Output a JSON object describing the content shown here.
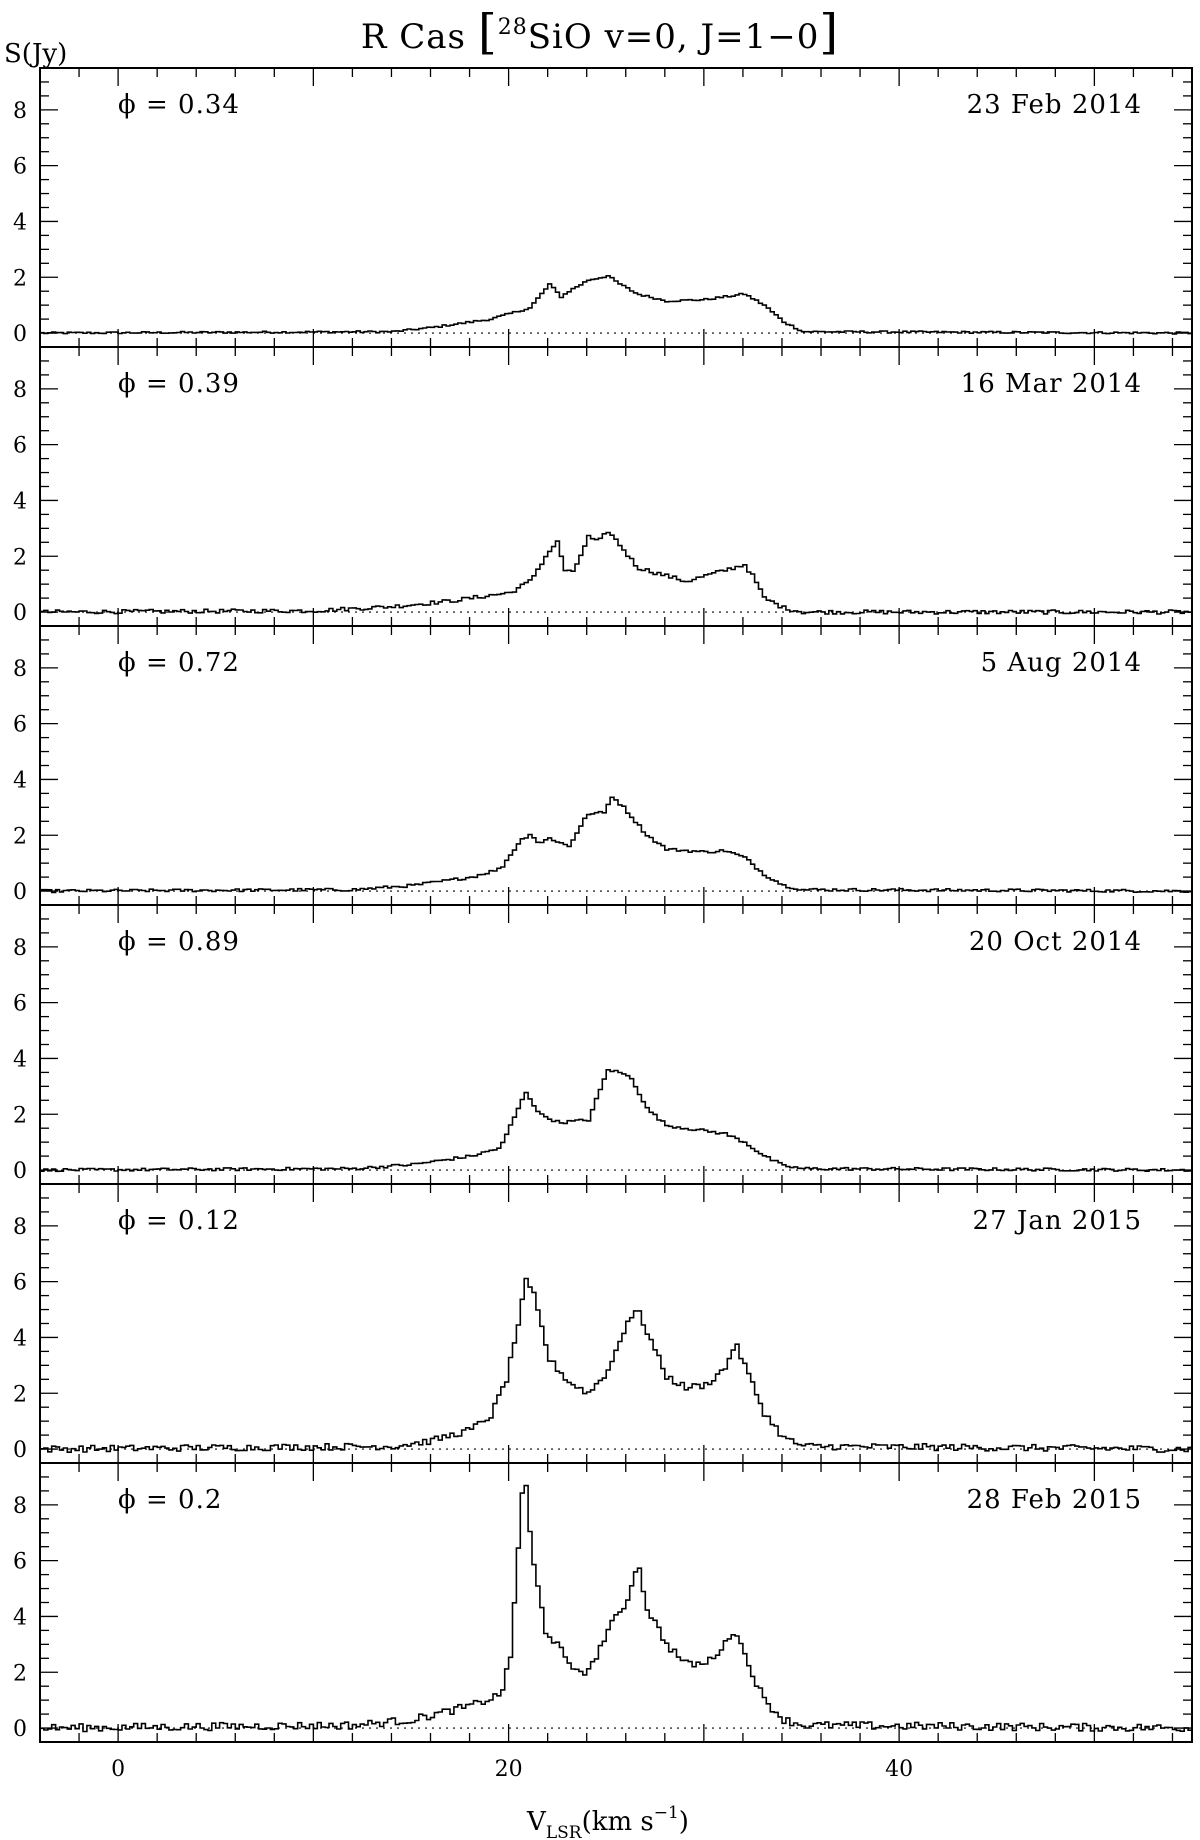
{
  "chart_data": {
    "type": "line",
    "title": "R Cas [28SiO v=0, J=1−0]",
    "title_parts": {
      "name": "R Cas",
      "isotope": "28",
      "species": "SiO v=0, J=1−0"
    },
    "ylabel": "S(Jy)",
    "xlabel_main": "V",
    "xlabel_sub": "LSR",
    "xlabel_unit": "(km s",
    "xlabel_exp": "−1",
    "xlabel_close": ")",
    "xlim": [
      -4,
      55
    ],
    "ylim": [
      -0.5,
      9.5
    ],
    "x_ticks_labeled": [
      0,
      20,
      40
    ],
    "y_ticks_labeled": [
      0,
      2,
      4,
      6,
      8
    ],
    "zero_line": "dotted",
    "panels": [
      {
        "phase_label": "ϕ = 0.34",
        "date": "23 Feb 2014",
        "profile": [
          [
            -4,
            0
          ],
          [
            14,
            0.05
          ],
          [
            16,
            0.2
          ],
          [
            19,
            0.5
          ],
          [
            21,
            0.9
          ],
          [
            22,
            1.75
          ],
          [
            22.6,
            1.3
          ],
          [
            23,
            1.5
          ],
          [
            24,
            1.9
          ],
          [
            25,
            2.05
          ],
          [
            25.5,
            1.8
          ],
          [
            26.5,
            1.4
          ],
          [
            28,
            1.15
          ],
          [
            30,
            1.2
          ],
          [
            31,
            1.3
          ],
          [
            32,
            1.4
          ],
          [
            33,
            1.0
          ],
          [
            34,
            0.4
          ],
          [
            35,
            0.05
          ],
          [
            55,
            0
          ]
        ],
        "noise": 0.035
      },
      {
        "phase_label": "ϕ = 0.39",
        "date": "16 Mar 2014",
        "profile": [
          [
            -4,
            0
          ],
          [
            10,
            0.05
          ],
          [
            14,
            0.2
          ],
          [
            17,
            0.4
          ],
          [
            20,
            0.7
          ],
          [
            21,
            1.1
          ],
          [
            22,
            2.2
          ],
          [
            22.4,
            2.5
          ],
          [
            22.8,
            1.5
          ],
          [
            23.2,
            1.4
          ],
          [
            24,
            2.7
          ],
          [
            24.5,
            2.5
          ],
          [
            25,
            2.9
          ],
          [
            25.5,
            2.5
          ],
          [
            26.5,
            1.6
          ],
          [
            28,
            1.3
          ],
          [
            29,
            1.1
          ],
          [
            30,
            1.3
          ],
          [
            31,
            1.5
          ],
          [
            32,
            1.7
          ],
          [
            32.5,
            1.2
          ],
          [
            33,
            0.5
          ],
          [
            34,
            0.15
          ],
          [
            35,
            0
          ],
          [
            55,
            0
          ]
        ],
        "noise": 0.07
      },
      {
        "phase_label": "ϕ = 0.72",
        "date": "5 Aug 2014",
        "profile": [
          [
            -4,
            0
          ],
          [
            12,
            0.05
          ],
          [
            15,
            0.2
          ],
          [
            18,
            0.5
          ],
          [
            19.5,
            0.8
          ],
          [
            20.5,
            1.8
          ],
          [
            21,
            2.05
          ],
          [
            21.5,
            1.7
          ],
          [
            22,
            1.9
          ],
          [
            23,
            1.6
          ],
          [
            23.8,
            2.6
          ],
          [
            24.2,
            2.8
          ],
          [
            24.8,
            2.8
          ],
          [
            25.2,
            3.4
          ],
          [
            25.8,
            3.0
          ],
          [
            27,
            2.0
          ],
          [
            28,
            1.5
          ],
          [
            30,
            1.4
          ],
          [
            31,
            1.45
          ],
          [
            32,
            1.2
          ],
          [
            33,
            0.6
          ],
          [
            34,
            0.2
          ],
          [
            35,
            0.05
          ],
          [
            55,
            0
          ]
        ],
        "noise": 0.05
      },
      {
        "phase_label": "ϕ = 0.89",
        "date": "20 Oct 2014",
        "profile": [
          [
            -4,
            0
          ],
          [
            12,
            0.05
          ],
          [
            15,
            0.2
          ],
          [
            18,
            0.5
          ],
          [
            19.5,
            0.8
          ],
          [
            20.2,
            1.9
          ],
          [
            20.8,
            2.8
          ],
          [
            21.5,
            2.0
          ],
          [
            22.5,
            1.7
          ],
          [
            24,
            1.8
          ],
          [
            25,
            3.6
          ],
          [
            25.6,
            3.5
          ],
          [
            26.2,
            3.3
          ],
          [
            27,
            2.2
          ],
          [
            28,
            1.6
          ],
          [
            30,
            1.4
          ],
          [
            31,
            1.3
          ],
          [
            32,
            1.0
          ],
          [
            33,
            0.5
          ],
          [
            34,
            0.15
          ],
          [
            35,
            0.05
          ],
          [
            55,
            0
          ]
        ],
        "noise": 0.05
      },
      {
        "phase_label": "ϕ = 0.12",
        "date": "27 Jan 2015",
        "profile": [
          [
            -4,
            0
          ],
          [
            14,
            0.1
          ],
          [
            16,
            0.3
          ],
          [
            18,
            0.7
          ],
          [
            19,
            1.2
          ],
          [
            19.8,
            2.5
          ],
          [
            20.4,
            4.5
          ],
          [
            20.8,
            6.0
          ],
          [
            21.2,
            5.5
          ],
          [
            22,
            3.2
          ],
          [
            23,
            2.4
          ],
          [
            24,
            2.0
          ],
          [
            25,
            2.8
          ],
          [
            26,
            4.6
          ],
          [
            26.5,
            5.0
          ],
          [
            27,
            4.2
          ],
          [
            28,
            2.6
          ],
          [
            29,
            2.2
          ],
          [
            30,
            2.3
          ],
          [
            31,
            2.9
          ],
          [
            31.5,
            3.8
          ],
          [
            32,
            3.0
          ],
          [
            33,
            1.3
          ],
          [
            34,
            0.4
          ],
          [
            35,
            0.1
          ],
          [
            55,
            0
          ]
        ],
        "noise": 0.12
      },
      {
        "phase_label": "ϕ = 0.2",
        "date": "28 Feb 2015",
        "profile": [
          [
            -4,
            0
          ],
          [
            12,
            0.1
          ],
          [
            15,
            0.3
          ],
          [
            18,
            0.8
          ],
          [
            19.5,
            1.2
          ],
          [
            20,
            2.5
          ],
          [
            20.4,
            6.5
          ],
          [
            20.7,
            9.4
          ],
          [
            21.1,
            6.2
          ],
          [
            21.8,
            3.5
          ],
          [
            22.5,
            2.9
          ],
          [
            23,
            2.2
          ],
          [
            24,
            2.0
          ],
          [
            25,
            3.5
          ],
          [
            26,
            4.6
          ],
          [
            26.5,
            6.0
          ],
          [
            27,
            4.3
          ],
          [
            28,
            3.0
          ],
          [
            29,
            2.3
          ],
          [
            30,
            2.3
          ],
          [
            31,
            3.0
          ],
          [
            31.5,
            3.6
          ],
          [
            32,
            2.6
          ],
          [
            33,
            1.0
          ],
          [
            34,
            0.3
          ],
          [
            35,
            0.1
          ],
          [
            55,
            0
          ]
        ],
        "noise": 0.14
      }
    ]
  }
}
